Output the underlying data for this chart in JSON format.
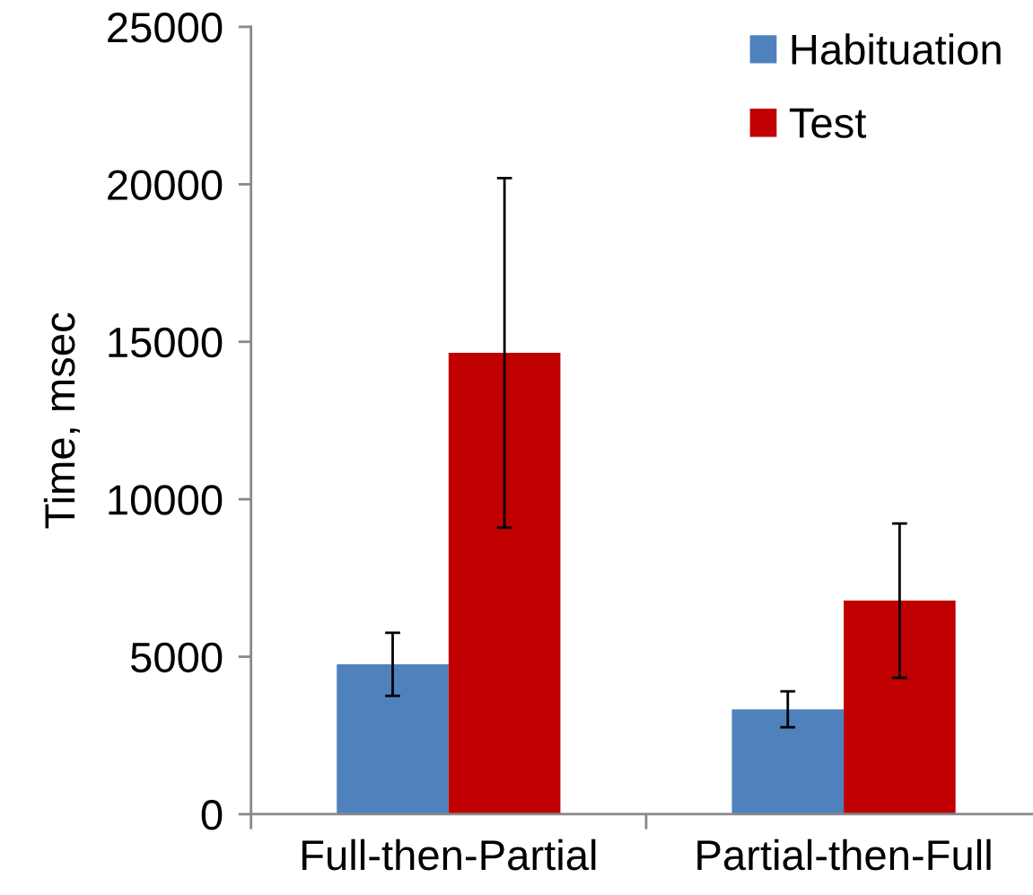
{
  "chart_data": {
    "type": "bar",
    "ylabel": "Time, msec",
    "categories": [
      "Full-then-Partial",
      "Partial-then-Full"
    ],
    "series": [
      {
        "name": "Habituation",
        "color": "#4f81bd",
        "values": [
          4760,
          3330
        ],
        "errors": [
          1000,
          570
        ]
      },
      {
        "name": "Test",
        "color": "#c00000",
        "values": [
          14650,
          6780
        ],
        "errors": [
          5550,
          2450
        ]
      }
    ],
    "ylim": [
      0,
      25000
    ],
    "yticks": [
      0,
      5000,
      10000,
      15000,
      20000,
      25000
    ],
    "grid": false,
    "legend": "top right"
  }
}
